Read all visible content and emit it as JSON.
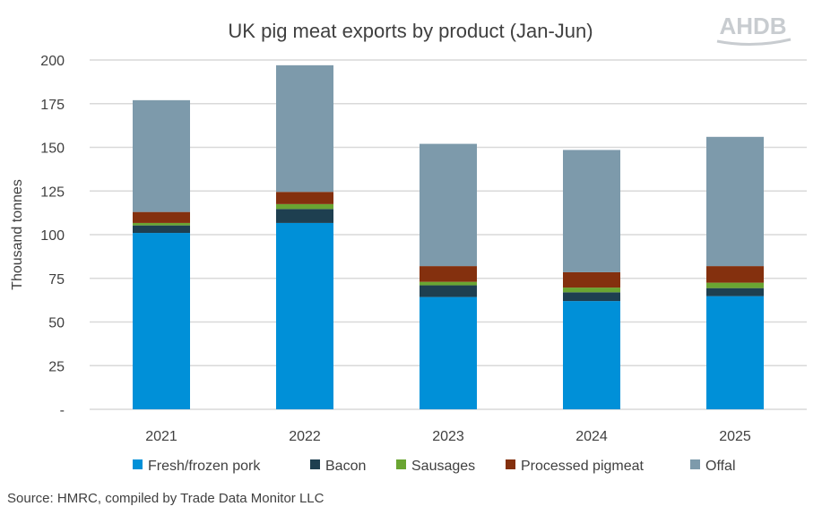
{
  "chart_data": {
    "type": "bar",
    "stacked": true,
    "title": "UK pig meat exports by product (Jan-Jun)",
    "ylabel": "Thousand tonnes",
    "xlabel": "",
    "ylim": [
      0,
      200
    ],
    "yticks": [
      0,
      25,
      50,
      75,
      100,
      125,
      150,
      175,
      200
    ],
    "ytick_labels": [
      "-",
      "25",
      "50",
      "75",
      "100",
      "125",
      "150",
      "175",
      "200"
    ],
    "grid": true,
    "legend_position": "bottom",
    "categories": [
      "2021",
      "2022",
      "2023",
      "2024",
      "2025"
    ],
    "series": [
      {
        "name": "Fresh/frozen pork",
        "color": "#0090d8",
        "values": [
          101.0,
          106.7,
          64.3,
          62.0,
          64.8
        ]
      },
      {
        "name": "Bacon",
        "color": "#1e3f50",
        "values": [
          4.3,
          8.0,
          6.7,
          5.0,
          4.6
        ]
      },
      {
        "name": "Sausages",
        "color": "#6aa532",
        "values": [
          1.4,
          2.8,
          2.0,
          2.7,
          3.1
        ]
      },
      {
        "name": "Processed pigmeat",
        "color": "#84300e",
        "values": [
          6.3,
          7.0,
          9.0,
          8.8,
          9.5
        ]
      },
      {
        "name": "Offal",
        "color": "#7d9aab",
        "values": [
          64.0,
          72.5,
          70.0,
          70.0,
          74.0
        ]
      }
    ],
    "source": "Source: HMRC, compiled by Trade Data Monitor LLC"
  },
  "logo_text": "AHDB"
}
